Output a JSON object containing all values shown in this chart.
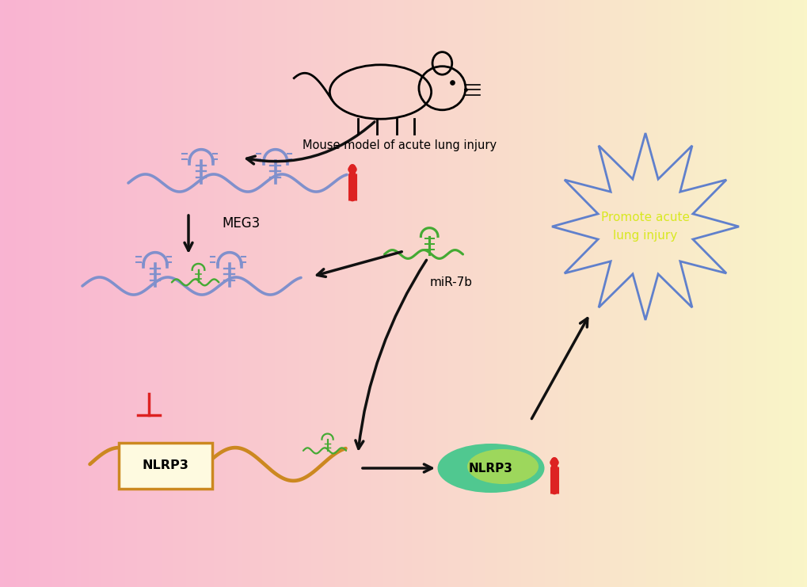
{
  "mouse_label": "Mouse model of acute lung injury",
  "meg3_label": "MEG3",
  "mir7b_label": "miR-7b",
  "nlrp3_mrna_label": "NLRP3",
  "nlrp3_protein_label": "NLRP3",
  "promote_label": "Promote acute\nlung injury",
  "lncrna_color": "#8090cc",
  "mirna_color": "#44aa33",
  "mrna_color": "#cc8820",
  "arrow_color": "#111111",
  "inhibit_color": "#dd2222",
  "up_arrow_color": "#dd2222",
  "star_fill_top": "#c8a098",
  "star_fill_bottom": "#a8c0e0",
  "star_edge": "#6080cc",
  "promote_text_color": "#d8e820",
  "nlrp3_box_fill": "#fefae0",
  "nlrp3_box_edge": "#cc8820",
  "nlrp3_ell_green": "#50c890",
  "nlrp3_ell_yellow": "#c8e040",
  "bg_pink": [
    249,
    180,
    210
  ],
  "bg_yellow": [
    250,
    245,
    200
  ]
}
